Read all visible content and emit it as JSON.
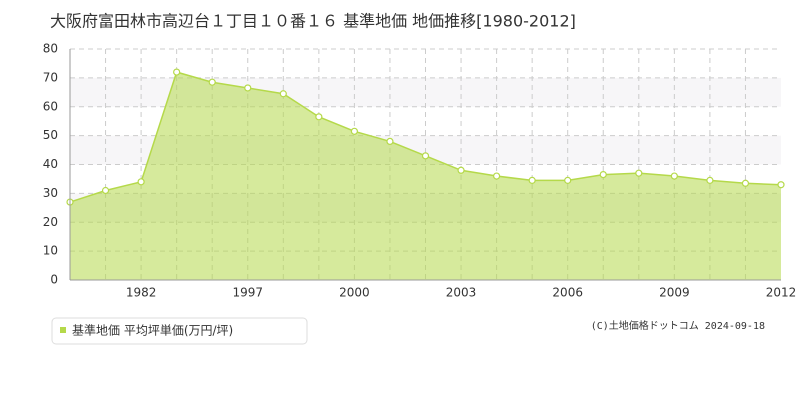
{
  "chart_data": {
    "type": "area",
    "title": "大阪府富田林市高辺台１丁目１０番１６ 基準地価 地価推移[1980-2012]",
    "categories": [
      null,
      null,
      "1982",
      null,
      null,
      "1997",
      null,
      null,
      "2000",
      null,
      null,
      "2003",
      null,
      null,
      "2006",
      null,
      null,
      "2009",
      null,
      null,
      "2012"
    ],
    "series": [
      {
        "name": "基準地価 平均坪単価(万円/坪)",
        "color": "#b5d94a",
        "values": [
          27,
          31,
          34,
          72,
          68.5,
          66.5,
          64.5,
          56.5,
          51.5,
          48,
          43,
          38,
          36,
          34.5,
          34.5,
          36.5,
          37,
          36,
          34.5,
          33.5,
          33
        ]
      }
    ],
    "ylim": [
      0,
      80
    ],
    "yticks": [
      0,
      10,
      20,
      30,
      40,
      50,
      60,
      70,
      80
    ],
    "grid": true,
    "copyright": "(C)土地価格ドットコム 2024-09-18"
  }
}
